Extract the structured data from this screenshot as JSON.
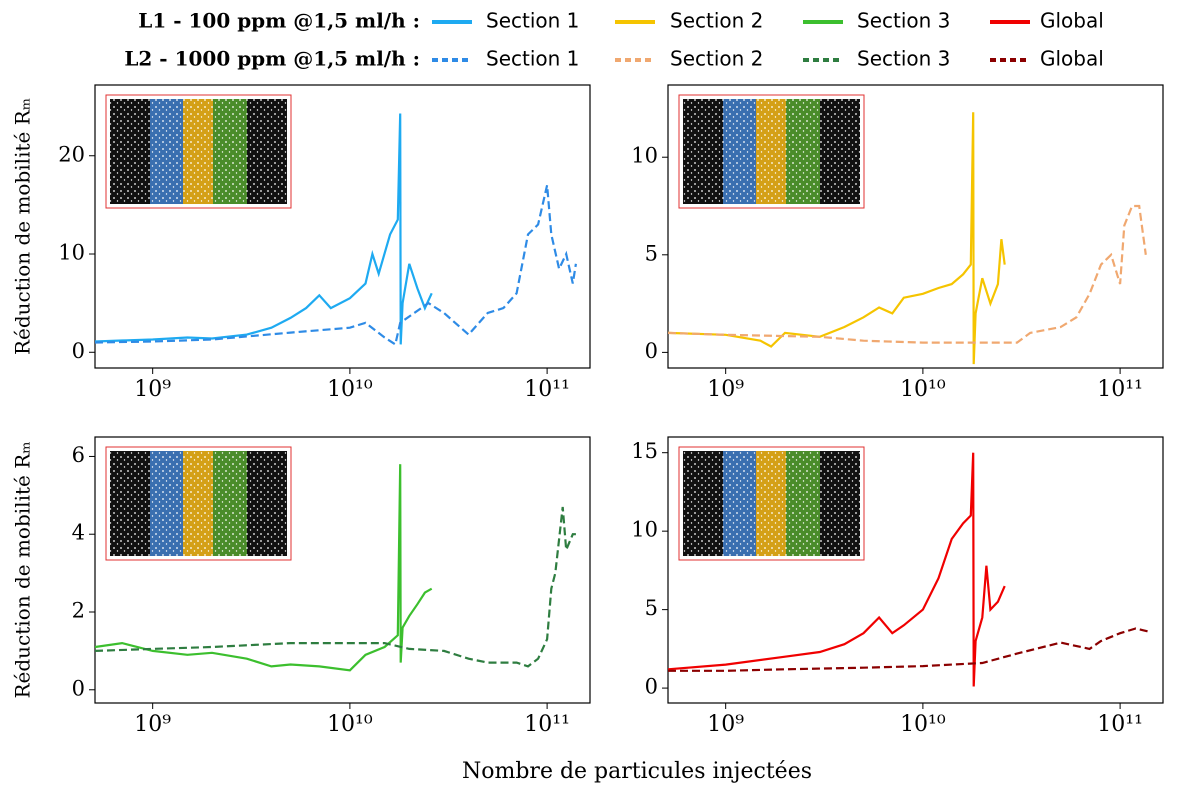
{
  "legend_labels": [
    "L1 - 100 ppm @1,5 ml/h :",
    "L2 - 1000 ppm @1,5 ml/h :"
  ],
  "xlabel": "Nombre de particules injectées",
  "chart_data": [
    {
      "type": "line",
      "xscale": "log",
      "ylabel": "Réduction de mobilité Rₘ",
      "xlim": [
        510000000.0,
        165000000000.0
      ],
      "ylim": [
        -1.6,
        27.2
      ],
      "xticks": [
        {
          "value": 1000000000.0,
          "label": "10⁹"
        },
        {
          "value": 10000000000.0,
          "label": "10¹⁰"
        },
        {
          "value": 100000000000.0,
          "label": "10¹¹"
        }
      ],
      "yticks": [
        0,
        10,
        20
      ],
      "series": [
        {
          "name": "Section 1",
          "color": "#1eaaf1",
          "dashed": false,
          "x": [
            510000000.0,
            700000000.0,
            1000000000.0,
            1500000000.0,
            2000000000.0,
            3000000000.0,
            4000000000.0,
            5000000000.0,
            6000000000.0,
            7000000000.0,
            8000000000.0,
            10000000000.0,
            12000000000.0,
            13000000000.0,
            14000000000.0,
            16000000000.0,
            17500000000.0,
            18000000000.0,
            18100000000.0,
            18500000000.0,
            20000000000.0,
            22000000000.0,
            24000000000.0,
            26000000000.0
          ],
          "values": [
            1.1,
            1.2,
            1.3,
            1.5,
            1.4,
            1.8,
            2.5,
            3.5,
            4.5,
            5.8,
            4.5,
            5.5,
            7,
            10,
            8,
            12,
            13.5,
            24.3,
            0.8,
            5,
            9,
            6.5,
            4.5,
            6
          ]
        },
        {
          "name": "Section 1",
          "color": "#2e8be6",
          "dashed": true,
          "x": [
            510000000.0,
            1000000000.0,
            2000000000.0,
            5000000000.0,
            10000000000.0,
            12000000000.0,
            15000000000.0,
            17000000000.0,
            18000000000.0,
            25000000000.0,
            30000000000.0,
            40000000000.0,
            50000000000.0,
            60000000000.0,
            70000000000.0,
            80000000000.0,
            90000000000.0,
            100000000000.0,
            105000000000.0,
            115000000000.0,
            125000000000.0,
            135000000000.0,
            140000000000.0
          ],
          "values": [
            1,
            1.1,
            1.3,
            2,
            2.5,
            3,
            1.5,
            0.8,
            3,
            5,
            4,
            1.8,
            4,
            4.5,
            6,
            12,
            13,
            17,
            12,
            8.5,
            10,
            7,
            9
          ]
        }
      ]
    },
    {
      "type": "line",
      "xscale": "log",
      "xlim": [
        510000000.0,
        165000000000.0
      ],
      "ylim": [
        -0.8,
        13.7
      ],
      "xticks": [
        {
          "value": 1000000000.0,
          "label": "10⁹"
        },
        {
          "value": 10000000000.0,
          "label": "10¹⁰"
        },
        {
          "value": 100000000000.0,
          "label": "10¹¹"
        }
      ],
      "yticks": [
        0,
        5,
        10
      ],
      "series": [
        {
          "name": "Section 2",
          "color": "#f5c400",
          "dashed": false,
          "x": [
            510000000.0,
            1000000000.0,
            1500000000.0,
            1700000000.0,
            2000000000.0,
            3000000000.0,
            4000000000.0,
            5000000000.0,
            6000000000.0,
            7000000000.0,
            8000000000.0,
            10000000000.0,
            12000000000.0,
            14000000000.0,
            16000000000.0,
            17500000000.0,
            18000000000.0,
            18100000000.0,
            18500000000.0,
            20000000000.0,
            22000000000.0,
            24000000000.0,
            25000000000.0,
            26000000000.0
          ],
          "values": [
            1,
            0.9,
            0.6,
            0.3,
            1,
            0.8,
            1.3,
            1.8,
            2.3,
            2,
            2.8,
            3,
            3.3,
            3.5,
            4,
            4.5,
            12.3,
            -0.6,
            2,
            3.8,
            2.5,
            3.5,
            5.8,
            4.5
          ]
        },
        {
          "name": "Section 2",
          "color": "#f0a870",
          "dashed": true,
          "x": [
            510000000.0,
            1000000000.0,
            3000000000.0,
            5000000000.0,
            10000000000.0,
            20000000000.0,
            30000000000.0,
            35000000000.0,
            50000000000.0,
            60000000000.0,
            70000000000.0,
            80000000000.0,
            90000000000.0,
            100000000000.0,
            105000000000.0,
            115000000000.0,
            125000000000.0,
            135000000000.0
          ],
          "values": [
            1,
            0.9,
            0.8,
            0.6,
            0.5,
            0.5,
            0.5,
            1,
            1.3,
            1.8,
            3,
            4.5,
            5,
            3.5,
            6.5,
            7.5,
            7.5,
            5
          ]
        }
      ]
    },
    {
      "type": "line",
      "xscale": "log",
      "ylabel": "Réduction de mobilité Rₘ",
      "xlim": [
        510000000.0,
        165000000000.0
      ],
      "ylim": [
        -0.34,
        6.5
      ],
      "xticks": [
        {
          "value": 1000000000.0,
          "label": "10⁹"
        },
        {
          "value": 10000000000.0,
          "label": "10¹⁰"
        },
        {
          "value": 100000000000.0,
          "label": "10¹¹"
        }
      ],
      "yticks": [
        0,
        2,
        4,
        6
      ],
      "series": [
        {
          "name": "Section 3",
          "color": "#3cbf2e",
          "dashed": false,
          "x": [
            510000000.0,
            700000000.0,
            1000000000.0,
            1500000000.0,
            2000000000.0,
            3000000000.0,
            4000000000.0,
            5000000000.0,
            7000000000.0,
            10000000000.0,
            12000000000.0,
            15000000000.0,
            17500000000.0,
            18000000000.0,
            18100000000.0,
            18500000000.0,
            20000000000.0,
            22000000000.0,
            24000000000.0,
            26000000000.0
          ],
          "values": [
            1.1,
            1.2,
            1.0,
            0.9,
            0.95,
            0.8,
            0.6,
            0.65,
            0.6,
            0.5,
            0.9,
            1.1,
            1.4,
            5.8,
            0.7,
            1.6,
            1.9,
            2.2,
            2.5,
            2.6
          ]
        },
        {
          "name": "Section 3",
          "color": "#2e7d40",
          "dashed": true,
          "x": [
            510000000.0,
            1000000000.0,
            2000000000.0,
            5000000000.0,
            10000000000.0,
            15000000000.0,
            20000000000.0,
            30000000000.0,
            40000000000.0,
            50000000000.0,
            70000000000.0,
            80000000000.0,
            90000000000.0,
            100000000000.0,
            105000000000.0,
            110000000000.0,
            120000000000.0,
            125000000000.0,
            135000000000.0,
            140000000000.0
          ],
          "values": [
            1.0,
            1.05,
            1.1,
            1.2,
            1.2,
            1.2,
            1.05,
            1.0,
            0.8,
            0.7,
            0.7,
            0.6,
            0.8,
            1.3,
            2.6,
            3,
            4.7,
            3.6,
            4,
            4
          ]
        }
      ]
    },
    {
      "type": "line",
      "xscale": "log",
      "xlim": [
        510000000.0,
        165000000000.0
      ],
      "ylim": [
        -0.95,
        16
      ],
      "xticks": [
        {
          "value": 1000000000.0,
          "label": "10⁹"
        },
        {
          "value": 10000000000.0,
          "label": "10¹⁰"
        },
        {
          "value": 100000000000.0,
          "label": "10¹¹"
        }
      ],
      "yticks": [
        0,
        5,
        10,
        15
      ],
      "series": [
        {
          "name": "Global",
          "color": "#f00000",
          "dashed": false,
          "x": [
            510000000.0,
            1000000000.0,
            2000000000.0,
            3000000000.0,
            4000000000.0,
            5000000000.0,
            6000000000.0,
            7000000000.0,
            8000000000.0,
            10000000000.0,
            12000000000.0,
            14000000000.0,
            16000000000.0,
            17500000000.0,
            18000000000.0,
            18100000000.0,
            18500000000.0,
            20000000000.0,
            21000000000.0,
            22000000000.0,
            24000000000.0,
            26000000000.0
          ],
          "values": [
            1.2,
            1.5,
            2,
            2.3,
            2.8,
            3.5,
            4.5,
            3.5,
            4,
            5,
            7,
            9.5,
            10.5,
            11,
            15,
            0.1,
            3,
            4.5,
            7.8,
            5,
            5.5,
            6.5
          ]
        },
        {
          "name": "Global",
          "color": "#8b0000",
          "dashed": true,
          "x": [
            510000000.0,
            1000000000.0,
            2000000000.0,
            5000000000.0,
            10000000000.0,
            20000000000.0,
            30000000000.0,
            50000000000.0,
            70000000000.0,
            80000000000.0,
            100000000000.0,
            120000000000.0,
            140000000000.0
          ],
          "values": [
            1.1,
            1.1,
            1.2,
            1.3,
            1.4,
            1.6,
            2.2,
            2.9,
            2.5,
            3,
            3.5,
            3.8,
            3.6
          ]
        }
      ]
    }
  ]
}
